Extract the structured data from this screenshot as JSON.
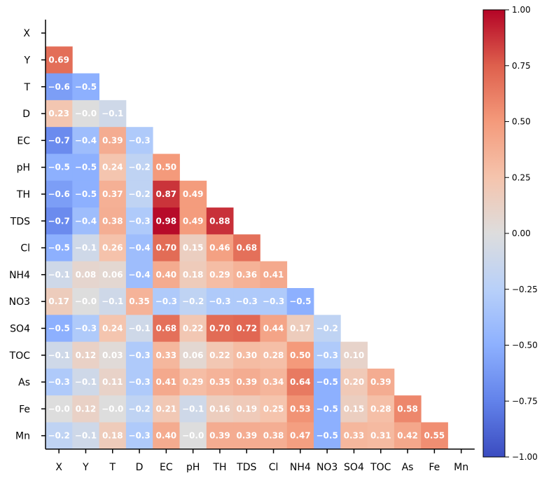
{
  "chart_data": {
    "type": "heatmap",
    "title": "",
    "variables": [
      "X",
      "Y",
      "T",
      "D",
      "EC",
      "pH",
      "TH",
      "TDS",
      "Cl",
      "NH4",
      "NO3",
      "SO4",
      "TOC",
      "As",
      "Fe",
      "Mn"
    ],
    "matrix": [
      [],
      [
        0.69
      ],
      [
        -0.6,
        -0.5
      ],
      [
        0.23,
        -0.0,
        -0.1
      ],
      [
        -0.7,
        -0.4,
        0.39,
        -0.3
      ],
      [
        -0.5,
        -0.5,
        0.24,
        -0.2,
        0.5
      ],
      [
        -0.6,
        -0.5,
        0.37,
        -0.2,
        0.87,
        0.49
      ],
      [
        -0.7,
        -0.4,
        0.38,
        -0.3,
        0.98,
        0.49,
        0.88
      ],
      [
        -0.5,
        -0.1,
        0.26,
        -0.4,
        0.7,
        0.15,
        0.46,
        0.68
      ],
      [
        -0.1,
        0.08,
        0.06,
        -0.4,
        0.4,
        0.18,
        0.29,
        0.36,
        0.41
      ],
      [
        0.17,
        -0.0,
        -0.1,
        0.35,
        -0.3,
        -0.2,
        -0.3,
        -0.3,
        -0.3,
        -0.5
      ],
      [
        -0.5,
        -0.3,
        0.24,
        -0.1,
        0.68,
        0.22,
        0.7,
        0.72,
        0.44,
        0.17,
        -0.2
      ],
      [
        -0.1,
        0.12,
        0.03,
        -0.3,
        0.33,
        0.06,
        0.22,
        0.3,
        0.28,
        0.5,
        -0.3,
        0.1
      ],
      [
        -0.3,
        -0.1,
        0.11,
        -0.3,
        0.41,
        0.29,
        0.35,
        0.39,
        0.34,
        0.64,
        -0.5,
        0.2,
        0.39
      ],
      [
        -0.0,
        0.12,
        -0.0,
        -0.2,
        0.21,
        -0.1,
        0.16,
        0.19,
        0.25,
        0.53,
        -0.5,
        0.15,
        0.28,
        0.58
      ],
      [
        -0.2,
        -0.1,
        0.18,
        -0.3,
        0.4,
        -0.0,
        0.39,
        0.39,
        0.38,
        0.47,
        -0.5,
        0.33,
        0.31,
        0.42,
        0.55
      ]
    ],
    "labels": [
      [],
      [
        "0.69"
      ],
      [
        "−0.6",
        "−0.5"
      ],
      [
        "0.23",
        "−0.0",
        "−0.1"
      ],
      [
        "−0.7",
        "−0.4",
        "0.39",
        "−0.3"
      ],
      [
        "−0.5",
        "−0.5",
        "0.24",
        "−0.2",
        "0.50"
      ],
      [
        "−0.6",
        "−0.5",
        "0.37",
        "−0.2",
        "0.87",
        "0.49"
      ],
      [
        "−0.7",
        "−0.4",
        "0.38",
        "−0.3",
        "0.98",
        "0.49",
        "0.88"
      ],
      [
        "−0.5",
        "−0.1",
        "0.26",
        "−0.4",
        "0.70",
        "0.15",
        "0.46",
        "0.68"
      ],
      [
        "−0.1",
        "0.08",
        "0.06",
        "−0.4",
        "0.40",
        "0.18",
        "0.29",
        "0.36",
        "0.41"
      ],
      [
        "0.17",
        "−0.0",
        "−0.1",
        "0.35",
        "−0.3",
        "−0.2",
        "−0.3",
        "−0.3",
        "−0.3",
        "−0.5"
      ],
      [
        "−0.5",
        "−0.3",
        "0.24",
        "−0.1",
        "0.68",
        "0.22",
        "0.70",
        "0.72",
        "0.44",
        "0.17",
        "−0.2"
      ],
      [
        "−0.1",
        "0.12",
        "0.03",
        "−0.3",
        "0.33",
        "0.06",
        "0.22",
        "0.30",
        "0.28",
        "0.50",
        "−0.3",
        "0.10"
      ],
      [
        "−0.3",
        "−0.1",
        "0.11",
        "−0.3",
        "0.41",
        "0.29",
        "0.35",
        "0.39",
        "0.34",
        "0.64",
        "−0.5",
        "0.20",
        "0.39"
      ],
      [
        "−0.0",
        "0.12",
        "−0.0",
        "−0.2",
        "0.21",
        "−0.1",
        "0.16",
        "0.19",
        "0.25",
        "0.53",
        "−0.5",
        "0.15",
        "0.28",
        "0.58"
      ],
      [
        "−0.2",
        "−0.1",
        "0.18",
        "−0.3",
        "0.40",
        "−0.0",
        "0.39",
        "0.39",
        "0.38",
        "0.47",
        "−0.5",
        "0.33",
        "0.31",
        "0.42",
        "0.55"
      ]
    ],
    "colorbar": {
      "range": [
        -1.0,
        1.0
      ],
      "ticks": [
        1.0,
        0.75,
        0.5,
        0.25,
        0.0,
        -0.25,
        -0.5,
        -0.75,
        -1.0
      ],
      "tick_labels": [
        "1.00",
        "0.75",
        "0.50",
        "0.25",
        "0.00",
        "−0.25",
        "−0.50",
        "−0.75",
        "−1.00"
      ],
      "colormap": "coolwarm",
      "low_color": "#3b4cc0",
      "mid_color": "#dddddd",
      "high_color": "#b40426"
    },
    "xlabel": "",
    "ylabel": ""
  }
}
